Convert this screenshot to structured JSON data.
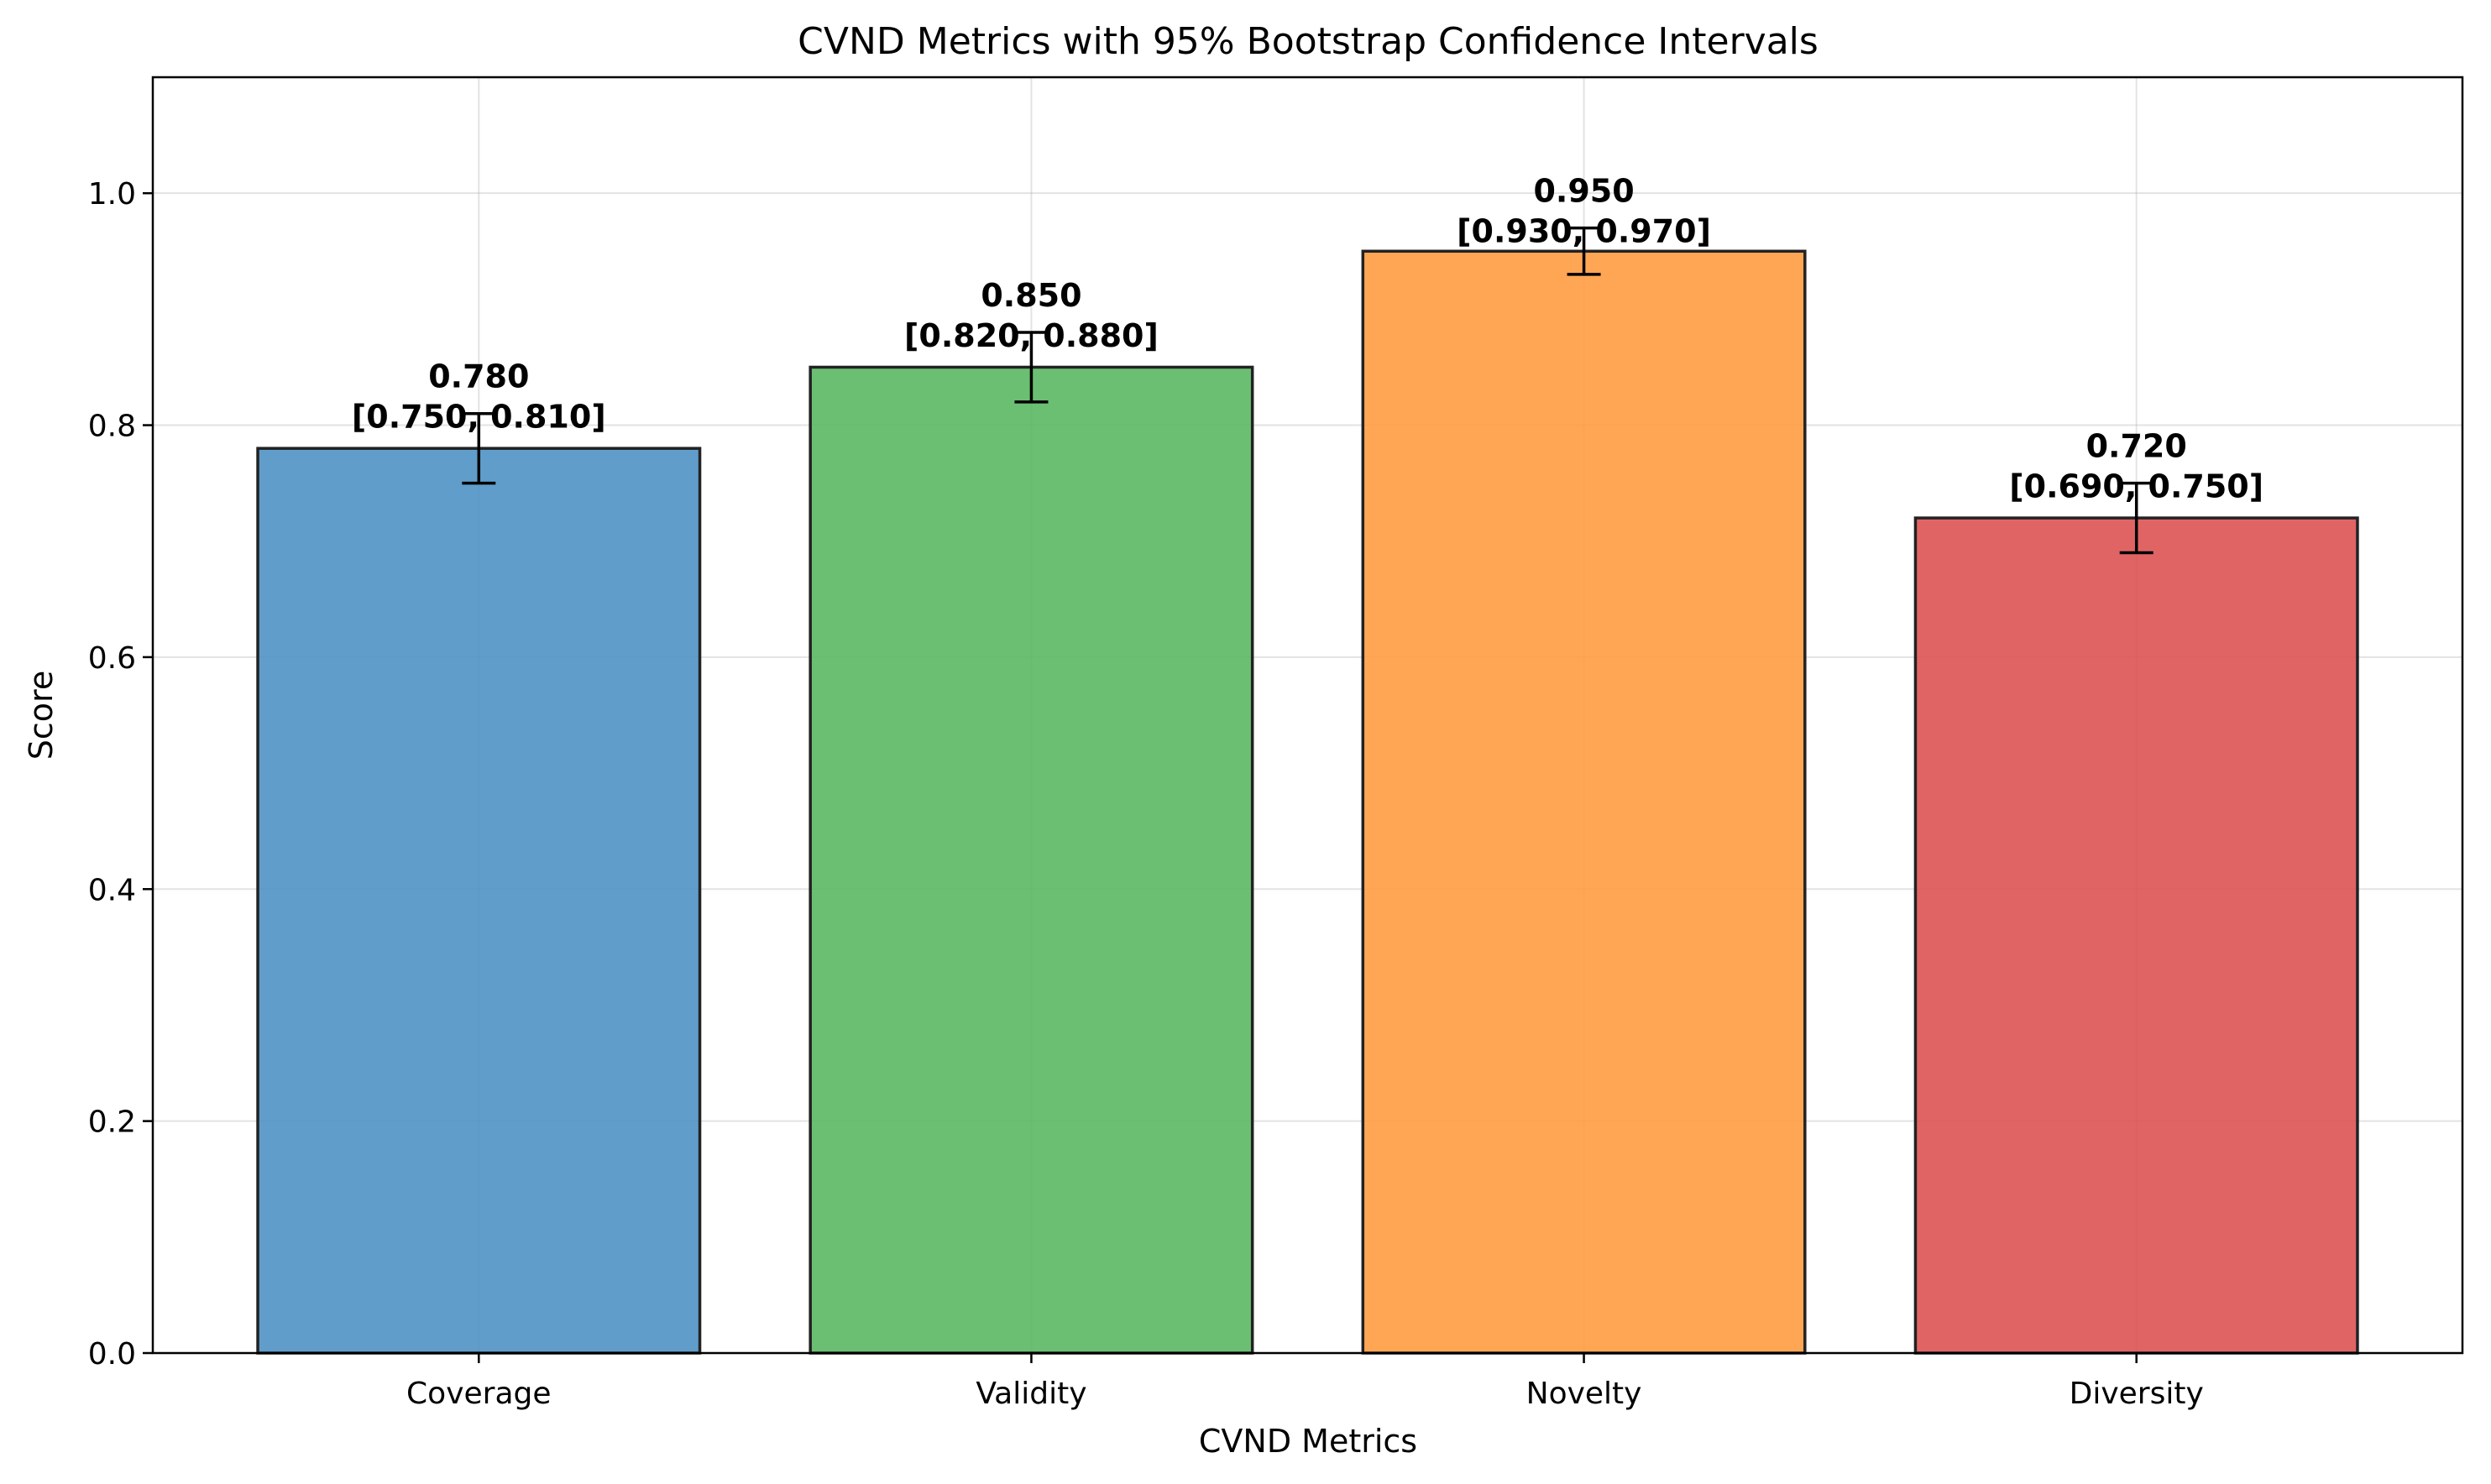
{
  "chart_data": {
    "type": "bar",
    "title": "CVND Metrics with 95% Bootstrap Confidence Intervals",
    "xlabel": "CVND Metrics",
    "ylabel": "Score",
    "ylim": [
      0,
      1.1
    ],
    "yticks": [
      0.0,
      0.2,
      0.4,
      0.6,
      0.8,
      1.0
    ],
    "ytick_labels": [
      "0.0",
      "0.2",
      "0.4",
      "0.6",
      "0.8",
      "1.0"
    ],
    "grid": true,
    "categories": [
      "Coverage",
      "Validity",
      "Novelty",
      "Diversity"
    ],
    "values": [
      0.78,
      0.85,
      0.95,
      0.72
    ],
    "ci_lower": [
      0.75,
      0.82,
      0.93,
      0.69
    ],
    "ci_upper": [
      0.81,
      0.88,
      0.97,
      0.75
    ],
    "colors": [
      "#4a8fc4",
      "#57b65e",
      "#ff9a3e",
      "#dd4f50"
    ],
    "value_labels": [
      "0.780",
      "0.850",
      "0.950",
      "0.720"
    ],
    "ci_labels": [
      "[0.750, 0.810]",
      "[0.820, 0.880]",
      "[0.930, 0.970]",
      "[0.690, 0.750]"
    ]
  }
}
